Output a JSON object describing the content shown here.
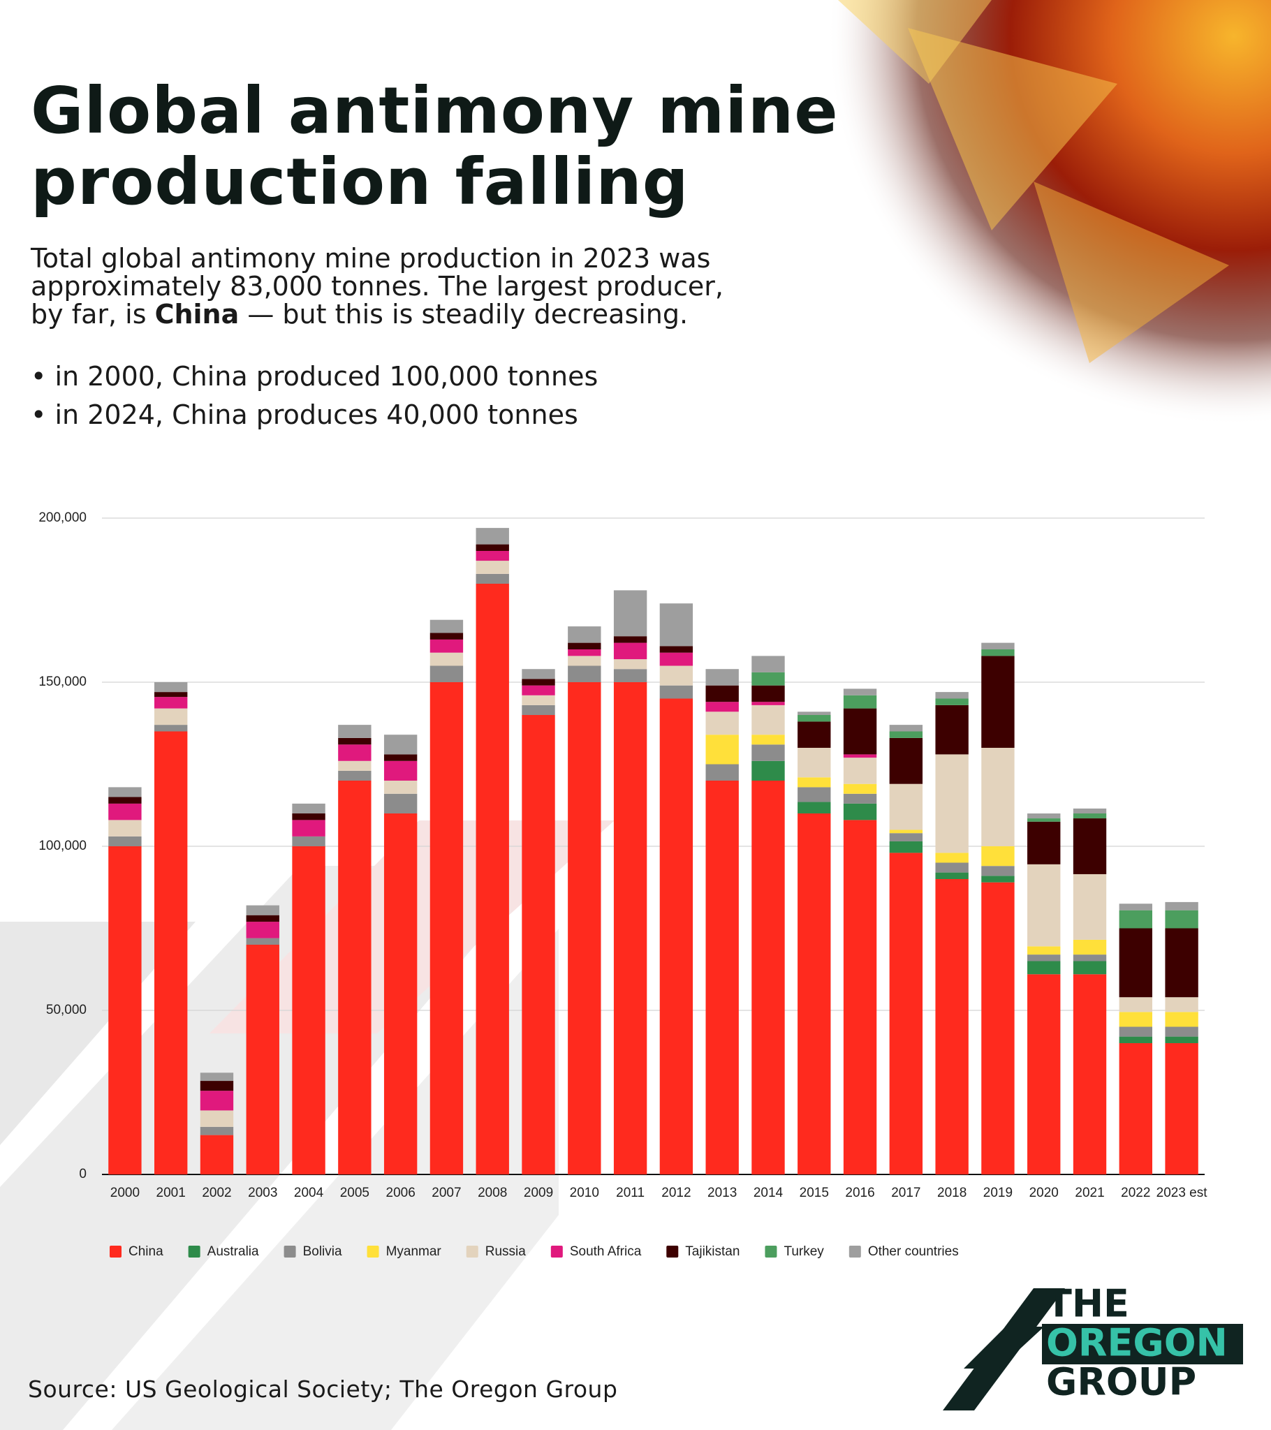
{
  "chart_data": {
    "type": "stacked-bar",
    "title": [
      "Global antimony mine",
      "production falling"
    ],
    "categories": [
      "2000",
      "2001",
      "2002",
      "2003",
      "2004",
      "2005",
      "2006",
      "2007",
      "2008",
      "2009",
      "2010",
      "2011",
      "2012",
      "2013",
      "2014",
      "2015",
      "2016",
      "2017",
      "2018",
      "2019",
      "2020",
      "2021",
      "2022",
      "2023 est"
    ],
    "series": [
      {
        "name": "China",
        "color": "#ff2a1e",
        "values": [
          100000,
          135000,
          12000,
          70000,
          100000,
          120000,
          110000,
          150000,
          180000,
          140000,
          150000,
          150000,
          145000,
          120000,
          120000,
          110000,
          108000,
          98000,
          90000,
          89000,
          61000,
          61000,
          40000,
          40000
        ]
      },
      {
        "name": "Australia",
        "color": "#2e8b4a",
        "values": [
          0,
          0,
          0,
          0,
          0,
          0,
          0,
          0,
          0,
          0,
          0,
          0,
          0,
          0,
          6000,
          3500,
          5000,
          3500,
          2000,
          2000,
          4000,
          4000,
          2000,
          2000
        ]
      },
      {
        "name": "Bolivia",
        "color": "#8c8c8c",
        "values": [
          3000,
          2000,
          2500,
          2000,
          3000,
          3000,
          6000,
          5000,
          3000,
          3000,
          5000,
          4000,
          4000,
          5000,
          5000,
          4500,
          3000,
          2500,
          3000,
          3000,
          2000,
          2000,
          3000,
          3000
        ]
      },
      {
        "name": "Myanmar",
        "color": "#ffe03a",
        "values": [
          0,
          0,
          0,
          0,
          0,
          0,
          0,
          0,
          0,
          0,
          0,
          0,
          0,
          9000,
          3000,
          3000,
          3000,
          1000,
          3000,
          6000,
          2500,
          4500,
          4500,
          4500
        ]
      },
      {
        "name": "Russia",
        "color": "#e3d3bd",
        "values": [
          5000,
          5000,
          5000,
          0,
          0,
          3000,
          4000,
          4000,
          4000,
          3000,
          3000,
          3000,
          6000,
          7000,
          9000,
          9000,
          8000,
          14000,
          30000,
          30000,
          25000,
          20000,
          4500,
          4500
        ]
      },
      {
        "name": "South Africa",
        "color": "#e0197d",
        "values": [
          5000,
          3500,
          6000,
          5000,
          5000,
          5000,
          6000,
          4000,
          3000,
          3000,
          2000,
          5000,
          4000,
          3000,
          1000,
          0,
          1000,
          0,
          0,
          0,
          0,
          0,
          0,
          0
        ]
      },
      {
        "name": "Tajikistan",
        "color": "#3d0000",
        "values": [
          2000,
          1500,
          3000,
          2000,
          2000,
          2000,
          2000,
          2000,
          2000,
          2000,
          2000,
          2000,
          2000,
          5000,
          5000,
          8000,
          14000,
          14000,
          15000,
          28000,
          13000,
          17000,
          21000,
          21000
        ]
      },
      {
        "name": "Turkey",
        "color": "#4c9e5e",
        "values": [
          0,
          0,
          0,
          0,
          0,
          0,
          0,
          0,
          0,
          0,
          0,
          0,
          0,
          0,
          4000,
          2000,
          4000,
          2000,
          2000,
          2000,
          1000,
          1500,
          5500,
          5500
        ]
      },
      {
        "name": "Other countries",
        "color": "#9e9e9e",
        "values": [
          3000,
          3000,
          2500,
          3000,
          3000,
          4000,
          6000,
          4000,
          5000,
          3000,
          5000,
          14000,
          13000,
          5000,
          5000,
          1000,
          2000,
          2000,
          2000,
          2000,
          1500,
          1500,
          2000,
          2500
        ]
      }
    ],
    "ylim": [
      0,
      200000
    ],
    "yticks": [
      0,
      {
        "value": 50000,
        "label": "50,000"
      },
      {
        "value": 100000,
        "label": "100,000"
      },
      {
        "value": 150000,
        "label": "150,000"
      },
      {
        "value": 200000,
        "label": "200,000"
      }
    ],
    "grid": true
  },
  "intro": {
    "subtitle": [
      "Total global antimony mine production in 2023 was",
      "approximately 83,000 tonnes. The largest producer,",
      "by far, is ",
      "China",
      " — but this is steadily decreasing."
    ],
    "bullets": [
      "in 2000, China produced 100,000 tonnes",
      "in 2024, China produces 40,000 tonnes"
    ]
  },
  "source": "Source: US Geological Society; The Oregon Group",
  "logo": [
    "THE",
    "OREGON",
    "GROUP"
  ]
}
